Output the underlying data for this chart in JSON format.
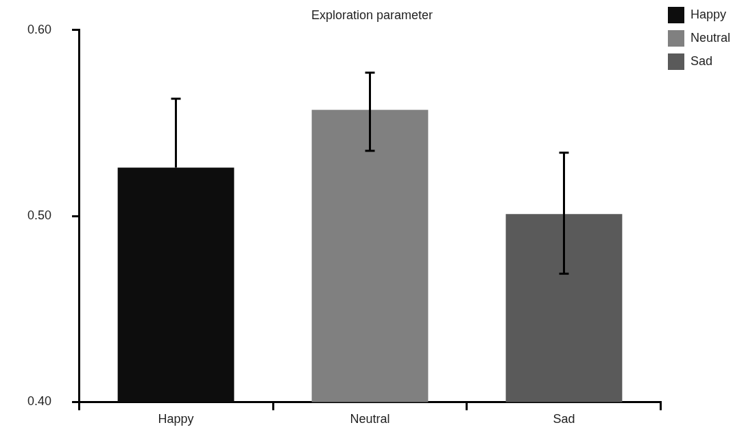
{
  "chart_data": {
    "type": "bar",
    "title": "Exploration parameter",
    "categories": [
      "Happy",
      "Neutral",
      "Sad"
    ],
    "series": [
      {
        "name": "Happy",
        "color": "#0d0d0d",
        "values": [
          0.526,
          null,
          null
        ],
        "errors": [
          [
            0.526,
            0.563
          ],
          null,
          null
        ]
      },
      {
        "name": "Neutral",
        "color": "#808080",
        "values": [
          null,
          0.557,
          null
        ],
        "errors": [
          null,
          [
            0.535,
            0.577
          ],
          null
        ]
      },
      {
        "name": "Sad",
        "color": "#5a5a5a",
        "values": [
          null,
          null,
          0.501
        ],
        "errors": [
          null,
          null,
          [
            0.469,
            0.534
          ]
        ]
      }
    ],
    "ylim": [
      0.4,
      0.6
    ],
    "yticks": [
      {
        "value": 0.4,
        "label": "0.40"
      },
      {
        "value": 0.5,
        "label": "0.50"
      },
      {
        "value": 0.6,
        "label": "0.60"
      }
    ],
    "grid": false,
    "legend": "top right"
  }
}
